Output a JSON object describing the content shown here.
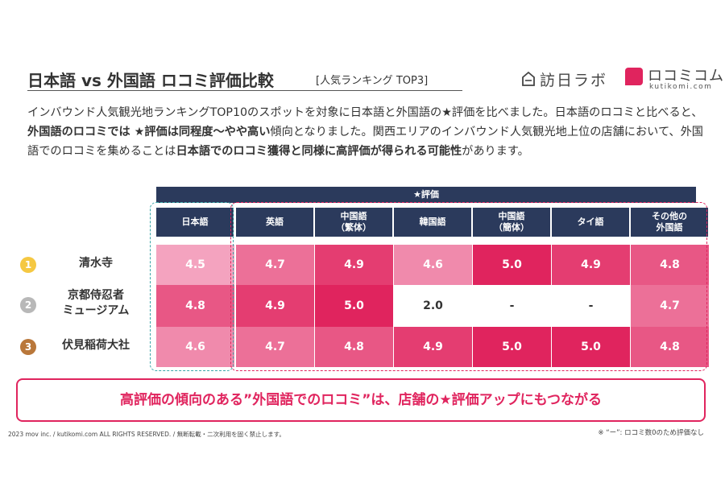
{
  "header": {
    "title": "日本語 vs 外国語 ロコミ評価比較",
    "subtitle": "[人気ランキング TOP3]"
  },
  "logos": {
    "logo1_text": "訪日ラボ",
    "logo2_text": "ロコミコム",
    "logo2_sub": "kutikomi.com"
  },
  "intro": {
    "p1": "インバウンド人気観光地ランキングTOP10のスポットを対象に日本語と外国語の★評価を比べました。日本語のロコミと比べると、",
    "p2_bold": "外国語のロコミでは ★評価は同程度〜やや高い",
    "p3": "傾向となりました。関西エリアのインバウンド人気観光地上位の店舗において、外国語でのロコミを集めることは",
    "p4_bold": "日本語でのロコミ獲得と同様に高評価が得られる可能性",
    "p5": "があります。"
  },
  "chart_data": {
    "type": "table",
    "header_group": "★評価",
    "columns": [
      "日本語",
      "英語",
      "中国語\n（繁体）",
      "韓国語",
      "中国語\n（簡体）",
      "タイ語",
      "その他の\n外国語"
    ],
    "rows": [
      {
        "rank": "1",
        "name": "清水寺",
        "values": [
          "4.5",
          "4.7",
          "4.9",
          "4.6",
          "5.0",
          "4.9",
          "4.8"
        ]
      },
      {
        "rank": "2",
        "name": "京都侍忍者\nミュージアム",
        "values": [
          "4.8",
          "4.9",
          "5.0",
          "2.0",
          "-",
          "-",
          "4.7"
        ]
      },
      {
        "rank": "3",
        "name": "伏見稲荷大社",
        "values": [
          "4.6",
          "4.7",
          "4.8",
          "4.9",
          "5.0",
          "5.0",
          "4.8"
        ]
      }
    ],
    "rank_colors": [
      "#f5c842",
      "#b8b8b8",
      "#b9773a"
    ],
    "scale_colors": {
      "low": "#f4a3bf",
      "high": "#e0245e"
    }
  },
  "banner": {
    "text": "高評価の傾向のある”外国語でのロコミ”は、店舗の★評価アップにもつながる"
  },
  "footer": {
    "copyright": "2023 mov inc. / kutikomi.com ALL RIGHTS RESERVED. / 無断転載・二次利用を固く禁止します。",
    "note": "※ “ー”: ロコミ数0のため評価なし"
  }
}
